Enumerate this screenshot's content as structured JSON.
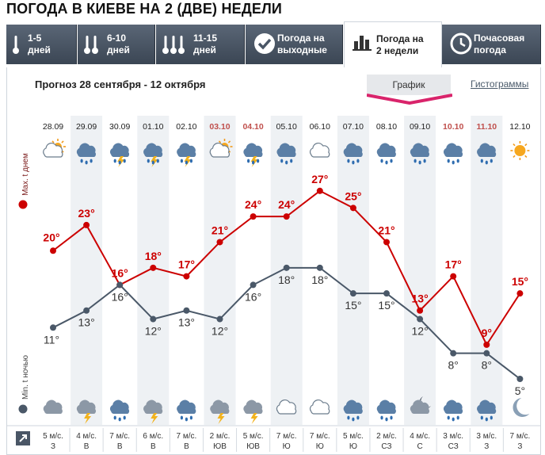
{
  "page_title": "ПОГОДА В КИЕВЕ НА 2 (ДВЕ) НЕДЕЛИ",
  "tabs": [
    {
      "label": "1-5\nдней",
      "icon": "thermometer-1-icon",
      "active": false
    },
    {
      "label": "6-10\nдней",
      "icon": "thermometer-2-icon",
      "active": false
    },
    {
      "label": "11-15\nдней",
      "icon": "thermometer-3-icon",
      "active": false
    },
    {
      "label": "Погода на\nвыходные",
      "icon": "checkmark-icon",
      "active": false
    },
    {
      "label": "Погода на\n2 недели",
      "icon": "bar-chart-icon",
      "active": true
    },
    {
      "label": "Почасовая\nпогода",
      "icon": "clock-icon",
      "active": false
    }
  ],
  "subtitle": "Прогноз 28 сентября - 12 октября",
  "view_buttons": {
    "graph": "График",
    "histogram": "Гистограммы"
  },
  "colors": {
    "max": "#cc0000",
    "min": "#4a5868",
    "weekend": "#c0504d",
    "tab_dark": "#4a5666",
    "accent_pink": "#d9246b"
  },
  "legend": {
    "max": "Max. t днем",
    "min": "Min. t ночью"
  },
  "chart_data": {
    "type": "line",
    "x": [
      "28.09",
      "29.09",
      "30.09",
      "01.10",
      "02.10",
      "03.10",
      "04.10",
      "05.10",
      "06.10",
      "07.10",
      "08.10",
      "09.10",
      "10.10",
      "11.10",
      "12.10"
    ],
    "weekend": [
      false,
      false,
      false,
      false,
      false,
      true,
      true,
      false,
      false,
      false,
      false,
      false,
      true,
      true,
      false
    ],
    "ylim": [
      5,
      28
    ],
    "series": [
      {
        "name": "Max. t днем",
        "values": [
          20,
          23,
          16,
          18,
          17,
          21,
          24,
          24,
          27,
          25,
          21,
          13,
          17,
          9,
          15
        ],
        "labels": [
          "20°",
          "23°",
          "16°",
          "18°",
          "17°",
          "21°",
          "24°",
          "24°",
          "27°",
          "25°",
          "21°",
          "13°",
          "17°",
          "9°",
          "15°"
        ]
      },
      {
        "name": "Min. t ночью",
        "values": [
          11,
          13,
          16,
          12,
          13,
          12,
          16,
          18,
          18,
          15,
          15,
          12,
          8,
          8,
          5
        ],
        "labels": [
          "11°",
          "13°",
          "16°",
          "12°",
          "13°",
          "12°",
          "16°",
          "18°",
          "18°",
          "15°",
          "15°",
          "12°",
          "8°",
          "8°",
          "5°"
        ]
      }
    ],
    "day_icons": [
      "partly-cloudy-sun-icon",
      "rain-cloud-icon",
      "thunderstorm-rain-icon",
      "thunderstorm-rain-icon",
      "thunderstorm-rain-icon",
      "partly-cloudy-sun-icon",
      "thunderstorm-rain-icon",
      "rain-cloud-icon",
      "cloudy-icon",
      "rain-cloud-icon",
      "rain-cloud-icon",
      "rain-cloud-icon",
      "rain-cloud-icon",
      "rain-cloud-icon",
      "sun-icon"
    ],
    "night_icons": [
      "cloudy-icon",
      "thunderstorm-icon",
      "rain-cloud-icon",
      "thunderstorm-icon",
      "rain-cloud-icon",
      "thunderstorm-icon",
      "thunderstorm-icon",
      "cloudy-light-icon",
      "cloudy-light-icon",
      "rain-cloud-icon",
      "rain-cloud-icon",
      "moon-cloud-icon",
      "rain-cloud-icon",
      "rain-cloud-icon",
      "moon-icon"
    ],
    "wind_speed": [
      "5 м/с.",
      "4 м/с.",
      "7 м/с.",
      "6 м/с.",
      "7 м/с.",
      "2 м/с.",
      "5 м/с.",
      "7 м/с.",
      "7 м/с.",
      "5 м/с.",
      "2 м/с.",
      "4 м/с.",
      "3 м/с.",
      "3 м/с.",
      "7 м/с."
    ],
    "wind_dir": [
      "З",
      "В",
      "В",
      "В",
      "В",
      "ЮВ",
      "ЮВ",
      "Ю",
      "Ю",
      "Ю",
      "СЗ",
      "С",
      "СЗ",
      "З",
      "З"
    ]
  }
}
